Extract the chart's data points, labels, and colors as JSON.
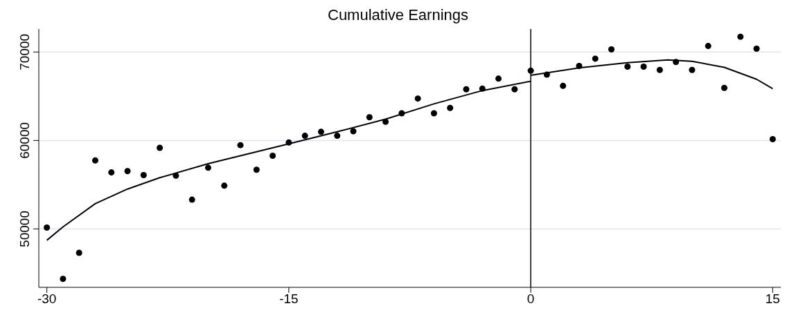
{
  "chart_data": {
    "type": "scatter",
    "title": "Cumulative Earnings",
    "xlim": [
      -30.5,
      15.5
    ],
    "xticks": [
      -30,
      -15,
      0,
      15
    ],
    "ylim": [
      43400,
      72600
    ],
    "yticks": [
      50000,
      60000,
      70000
    ],
    "grid": "y",
    "marker": "circle",
    "ref_lines": [
      {
        "axis": "x",
        "value": 0,
        "color": "#000000"
      }
    ],
    "series": [
      {
        "color": "#000000",
        "x": [
          -30,
          -29,
          -28,
          -27,
          -26,
          -25,
          -24,
          -23,
          -22,
          -21,
          -20,
          -19,
          -18,
          -17,
          -16,
          -15,
          -14,
          -13,
          -12,
          -11,
          -10,
          -9,
          -8,
          -7,
          -6,
          -5,
          -4,
          -3,
          -2,
          -1,
          0,
          1,
          2,
          3,
          4,
          5,
          6,
          7,
          8,
          9,
          10,
          11,
          12,
          13,
          14,
          15
        ],
        "values": [
          50150,
          44360,
          47300,
          57740,
          56390,
          56540,
          56090,
          59170,
          56020,
          53310,
          56920,
          54890,
          59470,
          56690,
          58270,
          59770,
          60530,
          60980,
          60530,
          61050,
          62630,
          62110,
          63080,
          64740,
          63080,
          63680,
          65790,
          65860,
          66990,
          65790,
          67890,
          67440,
          66170,
          68420,
          69250,
          70300,
          68350,
          68350,
          67970,
          68870,
          67970,
          70680,
          65940,
          71730,
          70380,
          60150
        ]
      },
      {
        "type": "line",
        "color": "#000000",
        "marker": "none",
        "x": [
          -30,
          -29,
          -27,
          -25,
          -23,
          -20,
          -17,
          -15,
          -12,
          -9,
          -6,
          -3,
          0
        ],
        "values": [
          48720,
          50230,
          52860,
          54510,
          55790,
          57370,
          58720,
          59620,
          60980,
          62410,
          64140,
          65640,
          66690
        ]
      },
      {
        "type": "line",
        "color": "#000000",
        "marker": "none",
        "x": [
          0,
          3,
          6,
          8.5,
          10,
          12,
          14,
          15
        ],
        "values": [
          67370,
          68200,
          68800,
          69100,
          68950,
          68270,
          66920,
          65860
        ]
      }
    ]
  }
}
